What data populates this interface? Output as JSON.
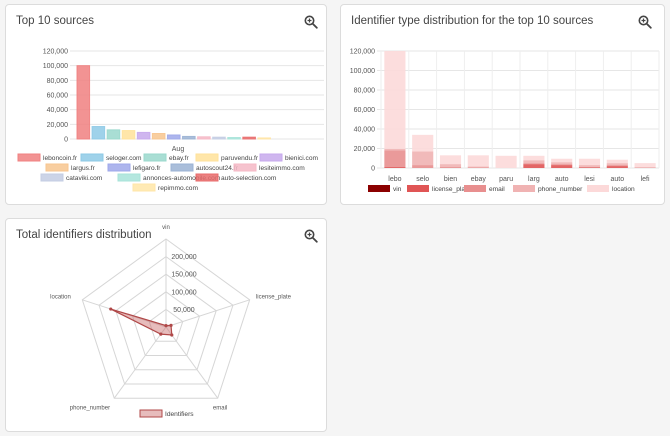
{
  "cards": [
    {
      "title": "Top 10 sources",
      "action_icon": "zoom-in-icon"
    },
    {
      "title": "Identifier type distribution for the top 10 sources",
      "action_icon": "zoom-in-icon"
    },
    {
      "title": "Total identifiers distribution",
      "action_icon": "zoom-in-icon"
    }
  ],
  "chart_data": [
    {
      "type": "bar",
      "categories": [
        "Aug"
      ],
      "xlabel": "",
      "ylabel": "",
      "ylim": [
        0,
        120000
      ],
      "yticks": [
        "0",
        "20,000",
        "40,000",
        "60,000",
        "80,000",
        "100,000",
        "120,000"
      ],
      "yticks_values": [
        0,
        20000,
        40000,
        60000,
        80000,
        100000,
        120000
      ],
      "legend_position": "bottom",
      "series": [
        {
          "name": "leboncoin.fr",
          "values": [
            100000
          ],
          "color": "#f08080"
        },
        {
          "name": "seloger.com",
          "values": [
            17000
          ],
          "color": "#8ecae6"
        },
        {
          "name": "ebay.fr",
          "values": [
            12500
          ],
          "color": "#9ad8cc"
        },
        {
          "name": "paruvendu.fr",
          "values": [
            11500
          ],
          "color": "#ffe29a"
        },
        {
          "name": "bienici.com",
          "values": [
            9000
          ],
          "color": "#c7a9ec"
        },
        {
          "name": "largus.fr",
          "values": [
            7500
          ],
          "color": "#f7c58f"
        },
        {
          "name": "lefigaro.fr",
          "values": [
            5500
          ],
          "color": "#9fa8ea"
        },
        {
          "name": "autoscout24.fr",
          "values": [
            3500
          ],
          "color": "#9bb3d4"
        },
        {
          "name": "lesiteimmo.com",
          "values": [
            3000
          ],
          "color": "#f5b8c6"
        },
        {
          "name": "cataviki.com",
          "values": [
            2500
          ],
          "color": "#c3cde3"
        },
        {
          "name": "annonces-automobile.com",
          "values": [
            2000
          ],
          "color": "#a7e3d9"
        },
        {
          "name": "auto-selection.com",
          "values": [
            2500
          ],
          "color": "#e86b6b"
        },
        {
          "name": "repimmo.com",
          "values": [
            1500
          ],
          "color": "#ffe6a8"
        }
      ]
    },
    {
      "type": "bar",
      "stacked": true,
      "categories": [
        "lebo",
        "selo",
        "bien",
        "ebay",
        "paru",
        "larg",
        "auto",
        "lesi",
        "auto",
        "lefi"
      ],
      "ylim": [
        0,
        120000
      ],
      "yticks": [
        "0",
        "20,000",
        "40,000",
        "60,000",
        "80,000",
        "100,000",
        "120,000"
      ],
      "yticks_values": [
        0,
        20000,
        40000,
        60000,
        80000,
        100000,
        120000
      ],
      "legend_position": "bottom",
      "series": [
        {
          "name": "vin",
          "color": "#8b0000",
          "values": [
            0,
            0,
            0,
            0,
            0,
            0,
            0,
            0,
            0,
            0
          ]
        },
        {
          "name": "license_plate",
          "color": "#e05555",
          "values": [
            1000,
            0,
            0,
            0,
            0,
            4000,
            3000,
            500,
            2000,
            0
          ]
        },
        {
          "name": "email",
          "color": "#e88f8f",
          "values": [
            17000,
            3000,
            1000,
            500,
            0,
            1000,
            1000,
            500,
            1000,
            0
          ]
        },
        {
          "name": "phone_number",
          "color": "#f0b3b3",
          "values": [
            1500,
            14000,
            3000,
            1000,
            0,
            3000,
            2000,
            2000,
            2000,
            1000
          ]
        },
        {
          "name": "location",
          "color": "#fcd9d9",
          "values": [
            100500,
            17000,
            9000,
            11500,
            12500,
            4500,
            3500,
            6500,
            3500,
            4000
          ]
        }
      ]
    },
    {
      "type": "radar",
      "axes": [
        "vin",
        "license_plate",
        "email",
        "phone_number",
        "location"
      ],
      "rlim": [
        0,
        250000
      ],
      "rticks": [
        "50,000",
        "100,000",
        "150,000",
        "200,000"
      ],
      "rticks_values": [
        50000,
        100000,
        150000,
        200000
      ],
      "legend_position": "bottom",
      "series": [
        {
          "name": "Identifiers",
          "color": "#c96a6a",
          "values": [
            4000,
            15000,
            28000,
            25000,
            165000
          ]
        }
      ]
    }
  ]
}
